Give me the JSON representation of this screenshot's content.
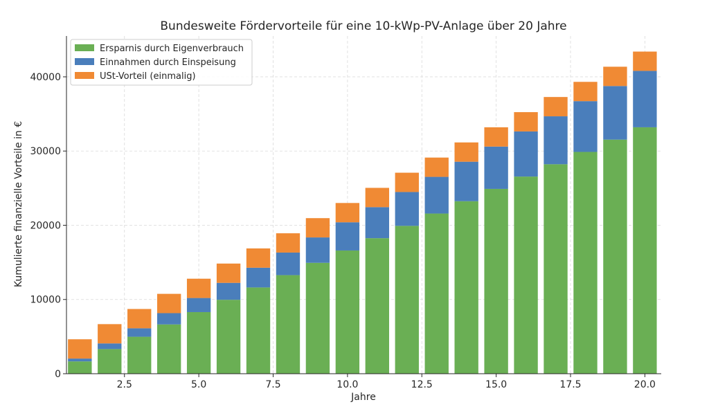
{
  "chart_data": {
    "type": "bar",
    "stacked": true,
    "title": "Bundesweite Fördervorteile für eine 10-kWp-PV-Anlage über 20 Jahre",
    "xlabel": "Jahre",
    "ylabel": "Kumulierte finanzielle Vorteile in €",
    "x": [
      1,
      2,
      3,
      4,
      5,
      6,
      7,
      8,
      9,
      10,
      11,
      12,
      13,
      14,
      15,
      16,
      17,
      18,
      19,
      20
    ],
    "xlim": [
      0.55,
      20.55
    ],
    "ylim": [
      0,
      45500
    ],
    "xticks": [
      2.5,
      5.0,
      7.5,
      10.0,
      12.5,
      15.0,
      17.5,
      20.0
    ],
    "xtick_labels": [
      "2.5",
      "5.0",
      "7.5",
      "10.0",
      "12.5",
      "15.0",
      "17.5",
      "20.0"
    ],
    "yticks": [
      0,
      10000,
      20000,
      30000,
      40000
    ],
    "ytick_labels": [
      "0",
      "10000",
      "20000",
      "30000",
      "40000"
    ],
    "grid": true,
    "legend_position": "top-left",
    "series": [
      {
        "name": "Ersparnis durch Eigenverbrauch",
        "color": "#6aaf54",
        "values": [
          1660,
          3320,
          4980,
          6640,
          8300,
          9960,
          11620,
          13280,
          14940,
          16600,
          18260,
          19920,
          21580,
          23240,
          24900,
          26560,
          28220,
          29880,
          31540,
          33200
        ]
      },
      {
        "name": "Einnahmen durch Einspeisung",
        "color": "#4a7ebb",
        "values": [
          380,
          760,
          1140,
          1520,
          1900,
          2280,
          2660,
          3040,
          3420,
          3800,
          4180,
          4560,
          4940,
          5320,
          5700,
          6080,
          6460,
          6840,
          7220,
          7600
        ]
      },
      {
        "name": "USt-Vorteil (einmalig)",
        "color": "#f08a34",
        "values": [
          2600,
          2600,
          2600,
          2600,
          2600,
          2600,
          2600,
          2600,
          2600,
          2600,
          2600,
          2600,
          2600,
          2600,
          2600,
          2600,
          2600,
          2600,
          2600,
          2600
        ]
      }
    ]
  }
}
